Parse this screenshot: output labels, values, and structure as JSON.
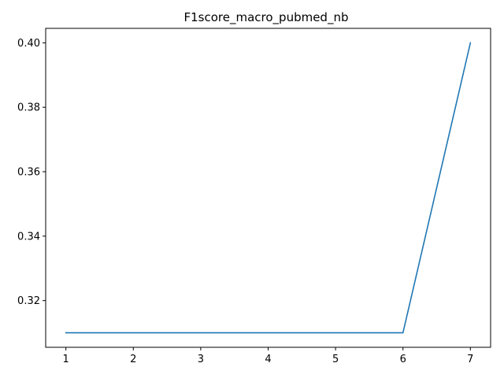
{
  "chart_data": {
    "type": "line",
    "title": "F1score_macro_pubmed_nb",
    "xlabel": "",
    "ylabel": "",
    "x": [
      1,
      2,
      3,
      4,
      5,
      6,
      7
    ],
    "series": [
      {
        "values": [
          0.31,
          0.31,
          0.31,
          0.31,
          0.31,
          0.31,
          0.4
        ],
        "color": "#1f77b4"
      }
    ],
    "xlim": [
      0.7,
      7.3
    ],
    "ylim": [
      0.3055,
      0.4045
    ],
    "xticks": [
      1,
      2,
      3,
      4,
      5,
      6,
      7
    ],
    "xtick_labels": [
      "1",
      "2",
      "3",
      "4",
      "5",
      "6",
      "7"
    ],
    "yticks": [
      0.32,
      0.34,
      0.36,
      0.38,
      0.4
    ],
    "ytick_labels": [
      "0.32",
      "0.34",
      "0.36",
      "0.38",
      "0.40"
    ],
    "grid": false,
    "legend": "none"
  }
}
